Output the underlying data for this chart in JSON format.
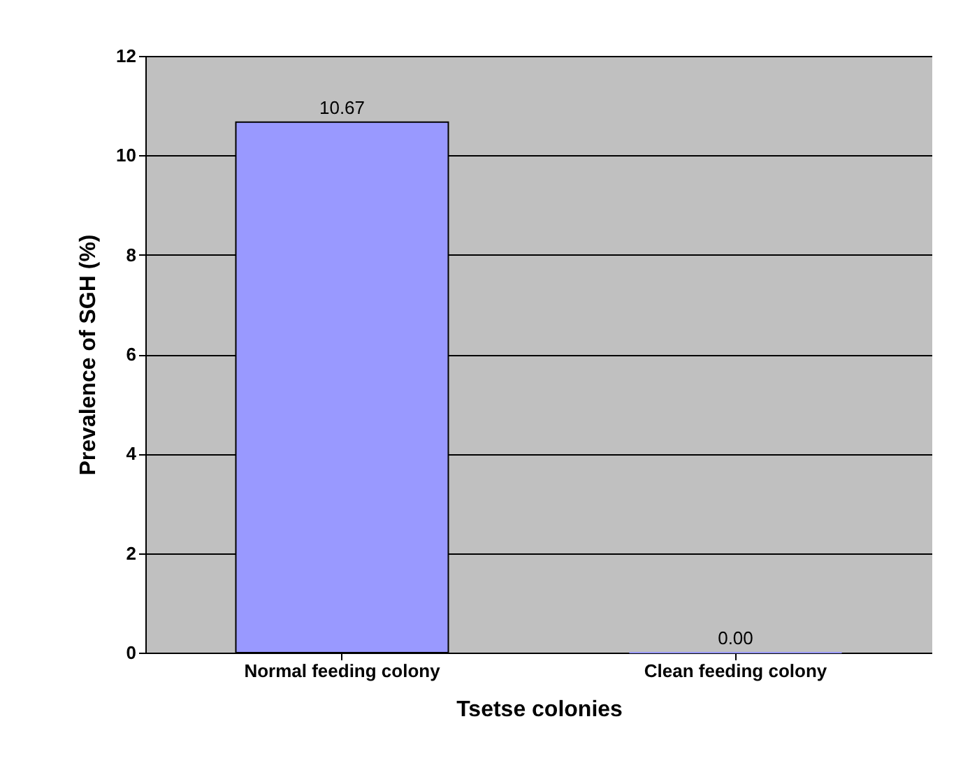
{
  "chart_data": {
    "type": "bar",
    "categories": [
      "Normal feeding colony",
      "Clean feeding colony"
    ],
    "values": [
      10.67,
      0.0
    ],
    "value_labels": [
      "10.67",
      "0.00"
    ],
    "color": "#9999ff",
    "xlabel": "Tsetse colonies",
    "ylabel": "Prevalence of SGH (%)",
    "ylim": [
      0,
      12
    ],
    "yticks": [
      0,
      2,
      4,
      6,
      8,
      10,
      12
    ],
    "grid": "y"
  }
}
